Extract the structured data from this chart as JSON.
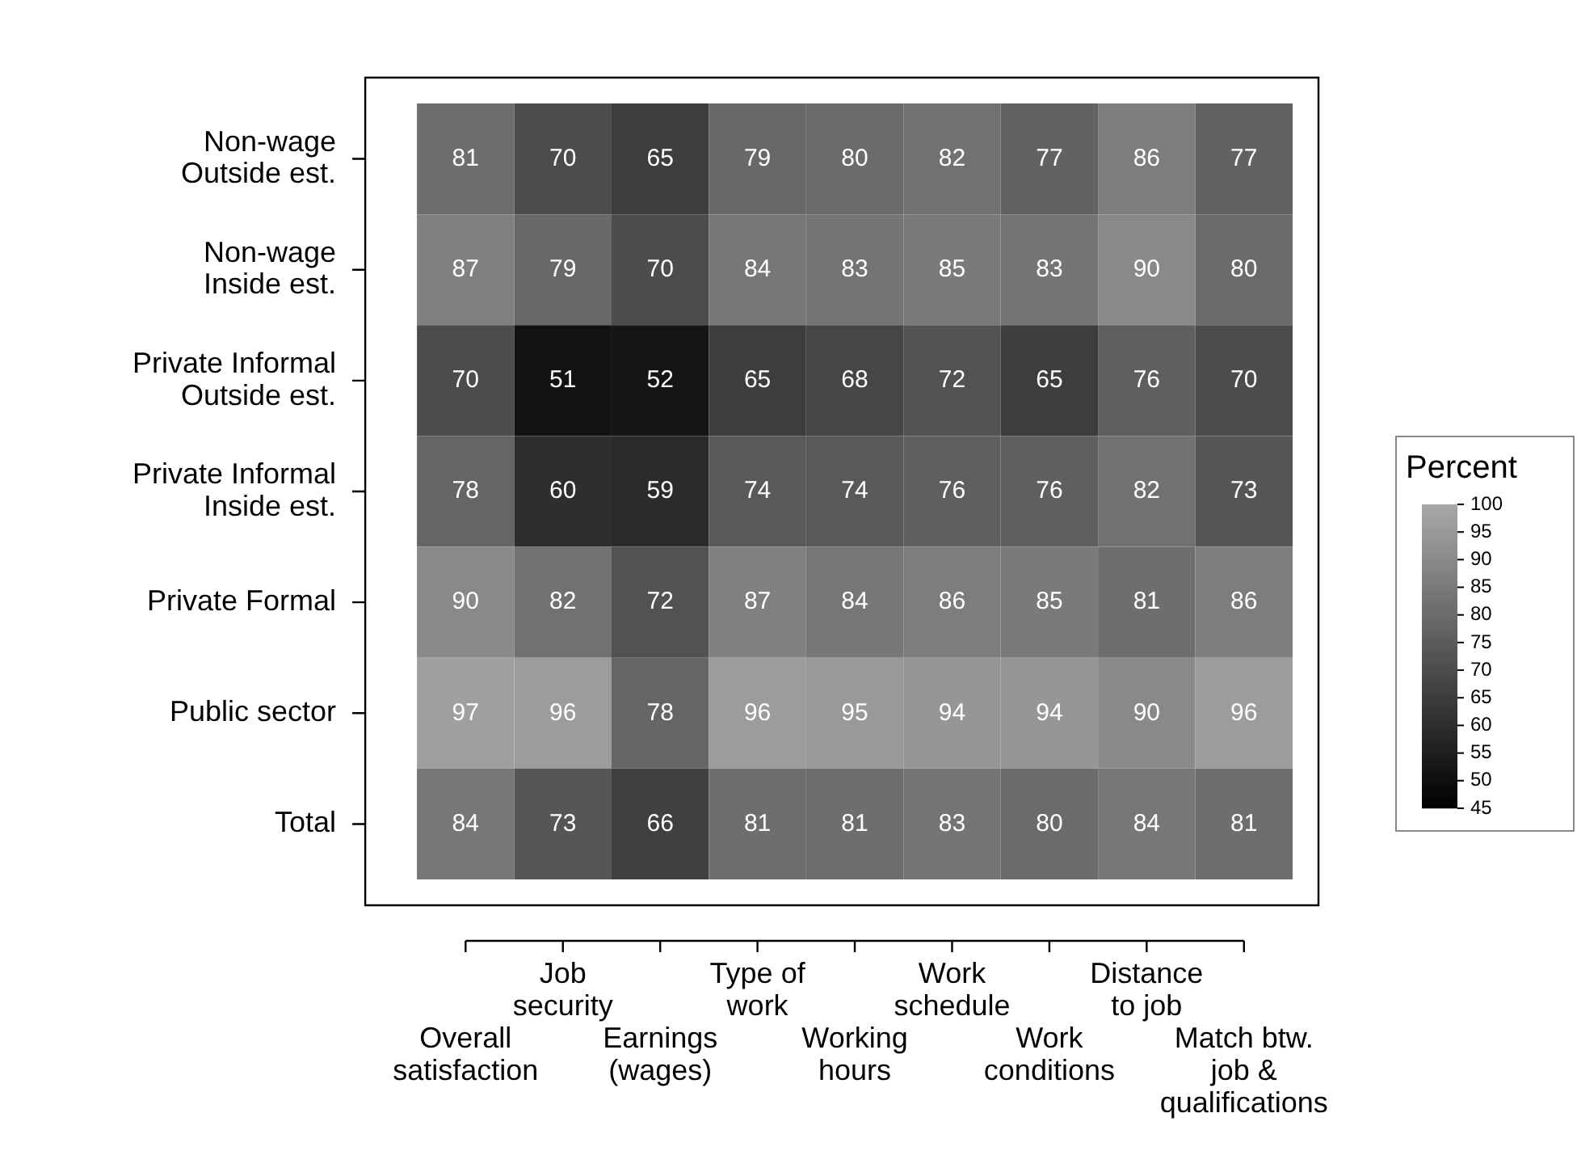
{
  "chart_data": {
    "type": "heatmap",
    "categories": [
      "Overall\nsatisfaction",
      "Job\nsecurity",
      "Earnings\n(wages)",
      "Type of\nwork",
      "Working\nhours",
      "Work\nschedule",
      "Work\nconditions",
      "Distance\nto job",
      "Match btw.\njob &\nqualifications"
    ],
    "y_categories": [
      "Non-wage\nOutside est.",
      "Non-wage\nInside est.",
      "Private Informal\nOutside est.",
      "Private Informal\nInside est.",
      "Private Formal",
      "Public sector",
      "Total"
    ],
    "cells": [
      [
        81,
        70,
        65,
        79,
        80,
        82,
        77,
        86,
        77
      ],
      [
        87,
        79,
        70,
        84,
        83,
        85,
        83,
        90,
        80
      ],
      [
        70,
        51,
        52,
        65,
        68,
        72,
        65,
        76,
        70
      ],
      [
        78,
        60,
        59,
        74,
        74,
        76,
        76,
        82,
        73
      ],
      [
        90,
        82,
        72,
        87,
        84,
        86,
        85,
        81,
        86
      ],
      [
        97,
        96,
        78,
        96,
        95,
        94,
        94,
        90,
        96
      ],
      [
        84,
        73,
        66,
        81,
        81,
        83,
        80,
        84,
        81
      ]
    ],
    "data_labels": true,
    "clabel": "Percent",
    "clim": [
      45,
      100
    ],
    "cticks": [
      45,
      50,
      55,
      60,
      65,
      70,
      75,
      80,
      85,
      90,
      95,
      100
    ]
  }
}
